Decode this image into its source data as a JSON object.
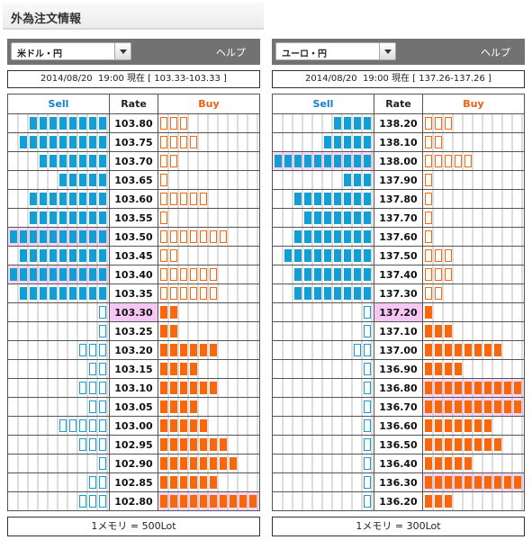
{
  "page_title": "外為注文情報",
  "colors": {
    "sell": "#129fd6",
    "buy": "#f9670d",
    "highlight": "#f7c7f4"
  },
  "panels": [
    {
      "pair": "米ドル・円",
      "help": "ヘルプ",
      "datetime": "2014/08/20  19:00 現在 [ 103.33-103.33 ]",
      "headers": {
        "sell": "Sell",
        "rate": "Rate",
        "buy": "Buy"
      },
      "unit": "1メモリ = 500Lot",
      "current_rate": "103.30",
      "rows": [
        {
          "rate": "103.80",
          "sell": 8,
          "sell_style": "fill",
          "buy": 3,
          "buy_style": "empty"
        },
        {
          "rate": "103.75",
          "sell": 9,
          "sell_style": "fill",
          "buy": 4,
          "buy_style": "empty"
        },
        {
          "rate": "103.70",
          "sell": 7,
          "sell_style": "fill",
          "buy": 2,
          "buy_style": "empty"
        },
        {
          "rate": "103.65",
          "sell": 5,
          "sell_style": "fill",
          "buy": 1,
          "buy_style": "empty"
        },
        {
          "rate": "103.60",
          "sell": 8,
          "sell_style": "fill",
          "buy": 5,
          "buy_style": "empty"
        },
        {
          "rate": "103.55",
          "sell": 8,
          "sell_style": "fill",
          "buy": 1,
          "buy_style": "empty"
        },
        {
          "rate": "103.50",
          "sell": 10,
          "sell_style": "fill",
          "buy": 7,
          "buy_style": "empty",
          "sell_hl": true
        },
        {
          "rate": "103.45",
          "sell": 9,
          "sell_style": "fill",
          "buy": 2,
          "buy_style": "empty"
        },
        {
          "rate": "103.40",
          "sell": 10,
          "sell_style": "fill",
          "buy": 6,
          "buy_style": "empty",
          "sell_hl": true
        },
        {
          "rate": "103.35",
          "sell": 9,
          "sell_style": "fill",
          "buy": 6,
          "buy_style": "empty"
        },
        {
          "rate": "103.30",
          "sell": 1,
          "sell_style": "empty",
          "buy": 2,
          "buy_style": "fill",
          "current": true
        },
        {
          "rate": "103.25",
          "sell": 1,
          "sell_style": "empty",
          "buy": 2,
          "buy_style": "fill"
        },
        {
          "rate": "103.20",
          "sell": 3,
          "sell_style": "empty",
          "buy": 6,
          "buy_style": "fill"
        },
        {
          "rate": "103.15",
          "sell": 2,
          "sell_style": "empty",
          "buy": 4,
          "buy_style": "fill"
        },
        {
          "rate": "103.10",
          "sell": 3,
          "sell_style": "empty",
          "buy": 6,
          "buy_style": "fill"
        },
        {
          "rate": "103.05",
          "sell": 2,
          "sell_style": "empty",
          "buy": 4,
          "buy_style": "fill"
        },
        {
          "rate": "103.00",
          "sell": 5,
          "sell_style": "empty",
          "buy": 5,
          "buy_style": "fill"
        },
        {
          "rate": "102.95",
          "sell": 3,
          "sell_style": "empty",
          "buy": 7,
          "buy_style": "fill"
        },
        {
          "rate": "102.90",
          "sell": 1,
          "sell_style": "empty",
          "buy": 8,
          "buy_style": "fill"
        },
        {
          "rate": "102.85",
          "sell": 2,
          "sell_style": "empty",
          "buy": 6,
          "buy_style": "fill"
        },
        {
          "rate": "102.80",
          "sell": 3,
          "sell_style": "empty",
          "buy": 10,
          "buy_style": "fill",
          "buy_hl": true
        }
      ]
    },
    {
      "pair": "ユーロ・円",
      "help": "ヘルプ",
      "datetime": "2014/08/20  19:00 現在 [ 137.26-137.26 ]",
      "headers": {
        "sell": "Sell",
        "rate": "Rate",
        "buy": "Buy"
      },
      "unit": "1メモリ = 300Lot",
      "current_rate": "137.20",
      "rows": [
        {
          "rate": "138.20",
          "sell": 4,
          "sell_style": "fill",
          "buy": 3,
          "buy_style": "empty"
        },
        {
          "rate": "138.10",
          "sell": 5,
          "sell_style": "fill",
          "buy": 2,
          "buy_style": "empty"
        },
        {
          "rate": "138.00",
          "sell": 10,
          "sell_style": "fill",
          "buy": 5,
          "buy_style": "empty",
          "sell_hl": true
        },
        {
          "rate": "137.90",
          "sell": 3,
          "sell_style": "fill",
          "buy": 1,
          "buy_style": "empty"
        },
        {
          "rate": "137.80",
          "sell": 8,
          "sell_style": "fill",
          "buy": 1,
          "buy_style": "empty"
        },
        {
          "rate": "137.70",
          "sell": 7,
          "sell_style": "fill",
          "buy": 1,
          "buy_style": "empty"
        },
        {
          "rate": "137.60",
          "sell": 8,
          "sell_style": "fill",
          "buy": 1,
          "buy_style": "empty"
        },
        {
          "rate": "137.50",
          "sell": 9,
          "sell_style": "fill",
          "buy": 3,
          "buy_style": "empty"
        },
        {
          "rate": "137.40",
          "sell": 8,
          "sell_style": "fill",
          "buy": 3,
          "buy_style": "empty"
        },
        {
          "rate": "137.30",
          "sell": 8,
          "sell_style": "fill",
          "buy": 2,
          "buy_style": "empty"
        },
        {
          "rate": "137.20",
          "sell": 1,
          "sell_style": "empty",
          "buy": 1,
          "buy_style": "fill",
          "current": true
        },
        {
          "rate": "137.10",
          "sell": 1,
          "sell_style": "empty",
          "buy": 3,
          "buy_style": "fill"
        },
        {
          "rate": "137.00",
          "sell": 2,
          "sell_style": "empty",
          "buy": 8,
          "buy_style": "fill"
        },
        {
          "rate": "136.90",
          "sell": 1,
          "sell_style": "empty",
          "buy": 4,
          "buy_style": "fill"
        },
        {
          "rate": "136.80",
          "sell": 1,
          "sell_style": "empty",
          "buy": 10,
          "buy_style": "fill",
          "buy_hl": true
        },
        {
          "rate": "136.70",
          "sell": 1,
          "sell_style": "empty",
          "buy": 10,
          "buy_style": "fill",
          "buy_hl": true
        },
        {
          "rate": "136.60",
          "sell": 1,
          "sell_style": "empty",
          "buy": 7,
          "buy_style": "fill"
        },
        {
          "rate": "136.50",
          "sell": 1,
          "sell_style": "empty",
          "buy": 8,
          "buy_style": "fill"
        },
        {
          "rate": "136.40",
          "sell": 1,
          "sell_style": "empty",
          "buy": 5,
          "buy_style": "fill"
        },
        {
          "rate": "136.30",
          "sell": 1,
          "sell_style": "empty",
          "buy": 10,
          "buy_style": "fill",
          "buy_hl": true
        },
        {
          "rate": "136.20",
          "sell": 1,
          "sell_style": "empty",
          "buy": 3,
          "buy_style": "fill"
        }
      ]
    }
  ]
}
